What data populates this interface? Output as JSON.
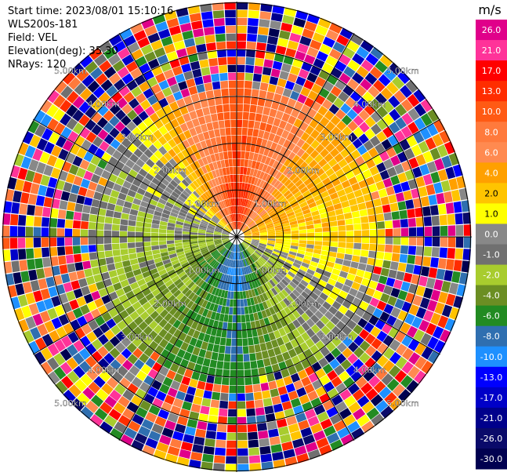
{
  "info": {
    "start_time": "Start time: 2023/08/01 15:10:16",
    "instrument": "WLS200s-181",
    "field": "Field: VEL",
    "elevation": "Elevation(deg): 35.30",
    "nrays": "NRays: 120"
  },
  "chart_data": {
    "type": "ppi-heatmap",
    "field": "VEL",
    "units": "m/s",
    "nrays": 120,
    "max_range_km": 5.0,
    "range_rings_km": [
      1,
      2,
      3,
      4,
      5
    ],
    "range_labels": [
      "1.00km",
      "2.00km",
      "3.00km",
      "4.00km",
      "5.00km"
    ],
    "spoke_angles_deg": [
      0,
      30,
      60,
      90,
      120,
      150,
      180,
      210,
      240,
      270,
      300,
      330
    ],
    "colorbar": {
      "title": "m/s",
      "ticks": [
        "26.0",
        "21.0",
        "17.0",
        "13.0",
        "10.0",
        "8.0",
        "6.0",
        "4.0",
        "2.0",
        "1.0",
        "0.0",
        "-1.0",
        "-2.0",
        "-4.0",
        "-6.0",
        "-8.0",
        "-10.0",
        "-13.0",
        "-17.0",
        "-21.0",
        "-26.0",
        "-30.0"
      ],
      "colors": [
        "#e0008a",
        "#ff3399",
        "#ff0000",
        "#ff2d00",
        "#ff5a14",
        "#ff7a3c",
        "#ff8a50",
        "#ffa000",
        "#ffc400",
        "#ffff00",
        "#888888",
        "#707070",
        "#a8cc2e",
        "#6b8e23",
        "#228b22",
        "#2f6fb0",
        "#1e90ff",
        "#0000ff",
        "#0000c8",
        "#00008b",
        "#0a0a6a",
        "#000050"
      ]
    },
    "velocity_pattern": {
      "near_range": {
        "north": 13.0,
        "northeast": 4.0,
        "east": 2.0,
        "southeast": -1.0,
        "south": -8.0,
        "southwest": -4.0,
        "west": -2.0,
        "northwest": 0.0
      },
      "noise_beyond_km": 3.0
    }
  }
}
